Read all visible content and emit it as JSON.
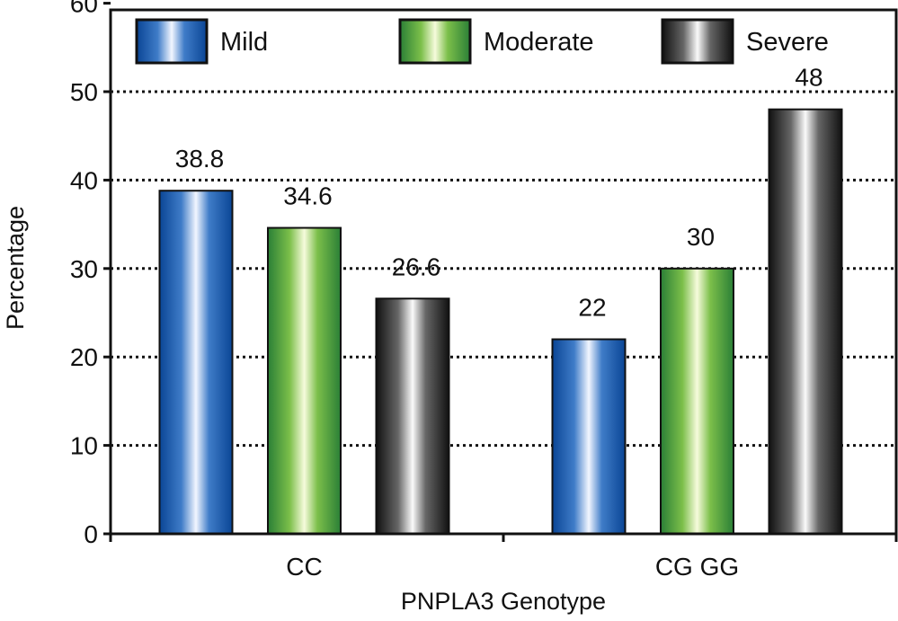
{
  "chart_data": {
    "type": "bar",
    "title": "",
    "xlabel": "PNPLA3 Genotype",
    "ylabel": "Percentage",
    "ylim": [
      0,
      60
    ],
    "yticks": [
      0,
      10,
      20,
      30,
      40,
      50,
      60
    ],
    "grid": "horizontal dotted",
    "legend": "top",
    "categories": [
      "CC",
      "CG GG"
    ],
    "series": [
      {
        "name": "Mild",
        "values": [
          38.8,
          22
        ],
        "labels": [
          "38.8",
          "22"
        ],
        "color": "#0b4ea2"
      },
      {
        "name": "Moderate",
        "values": [
          34.6,
          30
        ],
        "labels": [
          "34.6",
          "30"
        ],
        "color": "#2f8a3a"
      },
      {
        "name": "Severe",
        "values": [
          26.6,
          48
        ],
        "labels": [
          "26.6",
          "48"
        ],
        "color": "#141414"
      }
    ]
  }
}
